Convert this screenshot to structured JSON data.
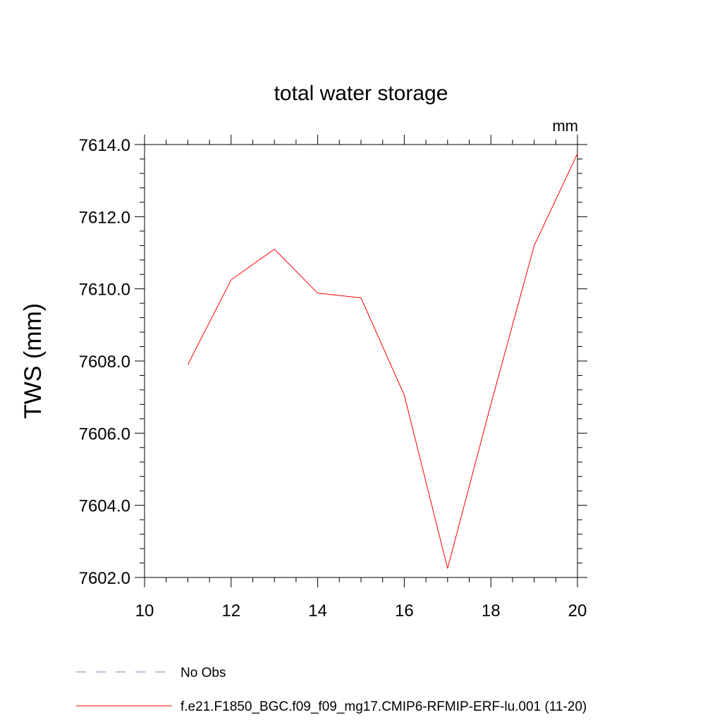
{
  "chart_data": {
    "type": "line",
    "title": "total water storage",
    "units_label": "mm",
    "xlabel": "",
    "ylabel": "TWS  (mm)",
    "xlim": [
      10,
      20
    ],
    "ylim": [
      7602.0,
      7614.0
    ],
    "x_ticks": [
      10,
      12,
      14,
      16,
      18,
      20
    ],
    "x_tick_labels": [
      "10",
      "12",
      "14",
      "16",
      "18",
      "20"
    ],
    "y_ticks": [
      7602.0,
      7604.0,
      7606.0,
      7608.0,
      7610.0,
      7612.0,
      7614.0
    ],
    "y_tick_labels": [
      "7602.0",
      "7604.0",
      "7606.0",
      "7608.0",
      "7610.0",
      "7612.0",
      "7614.0"
    ],
    "grid": false,
    "legend_position": "bottom",
    "series": [
      {
        "name": "f.e21.F1850_BGC.f09_f09_mg17.CMIP6-RFMIP-ERF-lu.001 (11-20)",
        "color": "#ff0000",
        "style": "solid",
        "x": [
          11,
          12,
          13,
          14,
          15,
          16,
          17,
          18,
          19,
          20
        ],
        "y": [
          7607.9,
          7610.25,
          7611.1,
          7609.88,
          7609.75,
          7607.05,
          7602.25,
          7606.8,
          7611.2,
          7613.75
        ]
      }
    ],
    "legend": [
      {
        "label": "No Obs",
        "color": "#8080b0",
        "style": "dashed"
      },
      {
        "label": "f.e21.F1850_BGC.f09_f09_mg17.CMIP6-RFMIP-ERF-lu.001 (11-20)",
        "color": "#ff0000",
        "style": "solid"
      }
    ]
  }
}
